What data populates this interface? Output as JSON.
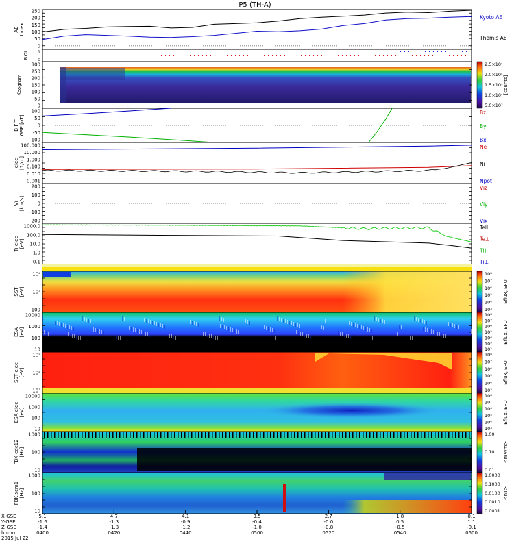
{
  "title": "P5 (TH-A)",
  "colors": {
    "kyoto": "#000000",
    "themis": "#1010c8",
    "bz": "#c00000",
    "by": "#00b000",
    "bx": "#0000c0",
    "ne": "#d00000",
    "ni": "#000000",
    "npot": "#0000c0",
    "green": "#22cc22"
  },
  "chart_data": [
    {
      "type": "line",
      "name": "ae",
      "ylabel": "AE Index",
      "ylim": [
        -25,
        260
      ],
      "yticks": [
        -25,
        0,
        25,
        50,
        75,
        100,
        125,
        150,
        175,
        200,
        225,
        250
      ],
      "ytick_labels": [
        "",
        "0",
        "",
        "50",
        "",
        "100",
        "",
        "150",
        "",
        "200",
        "",
        "250"
      ],
      "legend": [
        "Kyoto AE",
        "Themis AE"
      ],
      "series": [
        {
          "name": "Kyoto AE",
          "x": [
            0,
            0.05,
            0.1,
            0.15,
            0.2,
            0.25,
            0.3,
            0.35,
            0.4,
            0.45,
            0.5,
            0.55,
            0.6,
            0.65,
            0.7,
            0.75,
            0.8,
            0.85,
            0.9,
            0.95,
            1
          ],
          "values": [
            100,
            118,
            125,
            135,
            138,
            140,
            128,
            132,
            155,
            160,
            165,
            178,
            195,
            205,
            212,
            220,
            235,
            242,
            238,
            248,
            255
          ]
        },
        {
          "name": "Themis AE",
          "x": [
            0,
            0.05,
            0.1,
            0.15,
            0.2,
            0.25,
            0.3,
            0.35,
            0.4,
            0.45,
            0.5,
            0.55,
            0.6,
            0.65,
            0.7,
            0.75,
            0.8,
            0.85,
            0.9,
            0.95,
            1
          ],
          "values": [
            45,
            70,
            80,
            75,
            70,
            62,
            60,
            66,
            75,
            90,
            105,
            102,
            108,
            120,
            145,
            160,
            185,
            195,
            198,
            205,
            210
          ]
        }
      ]
    },
    {
      "type": "scatter",
      "name": "roi",
      "ylabel": "ROI",
      "yticks": [
        0,
        1
      ],
      "ytick_labels": [
        "0",
        "1"
      ]
    },
    {
      "type": "heatmap",
      "name": "keogram",
      "ylabel": "Keogram",
      "ylim": [
        0,
        300
      ],
      "yticks": [
        0,
        50,
        100,
        150,
        200,
        250,
        300
      ],
      "ytick_labels": [
        "0",
        "50",
        "100",
        "150",
        "200",
        "250",
        "300"
      ],
      "colorbar_label": "[counts]",
      "colorbar_ticks": [
        "2.5×10⁴",
        "2.0×10⁴",
        "1.5×10⁴",
        "1.0×10⁴",
        "5.0×10³"
      ]
    },
    {
      "type": "line",
      "name": "bfield",
      "ylabel": "B FIT GSE [nT]",
      "ylim": [
        -110,
        110
      ],
      "yticks": [
        -100,
        -50,
        0,
        50,
        100
      ],
      "ytick_labels": [
        "-100",
        "-50",
        "0",
        "50",
        "100"
      ],
      "legend": [
        "Bz",
        "By",
        "Bx"
      ],
      "series": [
        {
          "name": "Bx",
          "x": [
            0,
            0.1,
            0.2,
            0.3
          ],
          "values": [
            60,
            75,
            92,
            110
          ]
        },
        {
          "name": "By",
          "x": [
            0,
            0.1,
            0.2,
            0.3,
            0.4
          ],
          "values": [
            -45,
            -60,
            -75,
            -92,
            -110
          ]
        },
        {
          "name": "By2",
          "x": [
            0.76,
            0.78,
            0.8,
            0.815
          ],
          "values": [
            -110,
            -40,
            40,
            110
          ]
        }
      ]
    },
    {
      "type": "line",
      "name": "density",
      "ylabel": "elec [1/cc]",
      "ylog": true,
      "ylim": [
        0.001,
        100000
      ],
      "ytick_labels": [
        "100.000",
        "10.000",
        "1.000",
        "0.100",
        "0.010",
        "0.001"
      ],
      "legend": [
        "Ne",
        "Ni",
        "Npot"
      ],
      "series": [
        {
          "name": "Npot",
          "x": [
            0,
            0.5,
            0.9,
            1
          ],
          "values": [
            4000,
            8000,
            20000,
            30000
          ]
        },
        {
          "name": "Ne",
          "x": [
            0,
            0.5,
            0.9,
            1
          ],
          "values": [
            0.6,
            0.7,
            1.5,
            3
          ]
        },
        {
          "name": "Ni",
          "x": [
            0,
            0.2,
            0.4,
            0.6,
            0.8,
            0.9,
            0.94,
            1
          ],
          "values": [
            0.35,
            0.3,
            0.22,
            0.12,
            0.25,
            0.35,
            0.9,
            12
          ]
        }
      ]
    },
    {
      "type": "line",
      "name": "velocity",
      "ylabel": "Vi [km/s]",
      "ylim": [
        -250,
        250
      ],
      "yticks": [
        -200,
        -100,
        0,
        100,
        200
      ],
      "ytick_labels": [
        "-200",
        "-100",
        "0",
        "100",
        "200"
      ],
      "legend": [
        "Viz",
        "Viy",
        "Vix"
      ]
    },
    {
      "type": "line",
      "name": "temperature",
      "ylabel": "Ti elec [eV]",
      "ylog": true,
      "ylim": [
        0.05,
        3000
      ],
      "ytick_labels": [
        "1000.0",
        "100.0",
        "10.0",
        "1.0",
        "0.1"
      ],
      "legend": [
        "Tell",
        "Te⊥",
        "Ti∥",
        "Ti⊥"
      ],
      "series": [
        {
          "name": "Ti",
          "x": [
            0,
            0.3,
            0.6,
            0.75,
            0.8,
            0.9,
            0.94,
            1
          ],
          "values": [
            2000,
            1800,
            1500,
            700,
            800,
            900,
            100,
            20
          ]
        },
        {
          "name": "Te",
          "x": [
            0,
            0.3,
            0.55,
            0.7,
            0.9,
            0.95,
            1
          ],
          "values": [
            150,
            120,
            100,
            30,
            15,
            8,
            4
          ]
        }
      ]
    },
    {
      "type": "heatmap",
      "name": "sst-ion",
      "ylabel": "SST [eV]",
      "ytick_labels": [
        "10⁴",
        "10³",
        "100"
      ],
      "colorbar_label": "Eflux, EFU",
      "colorbar_ticks": [
        "10⁸",
        "10⁷",
        "10⁶",
        "10⁵",
        "10⁴",
        "10³"
      ]
    },
    {
      "type": "heatmap",
      "name": "esa-ion",
      "ylabel": "ESA [eV]",
      "ytick_labels": [
        "10000",
        "1000",
        "100",
        "10"
      ],
      "colorbar_label": "Eflux, EFU",
      "colorbar_ticks": [
        "10⁸",
        "10⁷",
        "10⁶",
        "10⁵",
        "10⁴",
        "10³",
        "10²"
      ]
    },
    {
      "type": "heatmap",
      "name": "sst-elec",
      "ylabel": "SST elec [eV]",
      "ytick_labels": [
        "10⁵",
        "10⁴",
        "10³"
      ],
      "colorbar_label": "Eflux, EFU",
      "colorbar_ticks": [
        "10⁸",
        "10⁷",
        "10⁶",
        "10⁵",
        "10⁴",
        "10³"
      ]
    },
    {
      "type": "heatmap",
      "name": "esa-elec",
      "ylabel": "ESA elec [eV]",
      "ytick_labels": [
        "10000",
        "1000",
        "100",
        "10"
      ],
      "colorbar_label": "Eflux, EFU",
      "colorbar_ticks": [
        "10⁸",
        "10⁷",
        "10⁶",
        "10⁵",
        "10⁴",
        "10³"
      ]
    },
    {
      "type": "heatmap",
      "name": "fbk-edc",
      "ylabel": "FBK edc12 [Hz]",
      "ytick_labels": [
        "1000",
        "100",
        "10"
      ],
      "colorbar_label": "<mV/m>",
      "colorbar_ticks": [
        "1.00",
        "0.10",
        "0.01"
      ]
    },
    {
      "type": "heatmap",
      "name": "fbk-scm",
      "ylabel": "FBK scm1 [Hz]",
      "ytick_labels": [
        "1000",
        "100",
        "10"
      ],
      "colorbar_label": "<nT>",
      "colorbar_ticks": [
        "1.0000",
        "0.1000",
        "0.0100",
        "0.0010",
        "0.0001"
      ]
    }
  ],
  "xaxis": {
    "row_labels": [
      "X-GSE",
      "Y-GSE",
      "Z-GSE",
      "hhmm",
      "2015 Jul 22"
    ],
    "ticks": [
      {
        "x": "5.1",
        "y": "-1.6",
        "z": "-1.4",
        "t": "0400"
      },
      {
        "x": "4.7",
        "y": "-1.3",
        "z": "-1.3",
        "t": "0420"
      },
      {
        "x": "4.1",
        "y": "-0.9",
        "z": "-1.2",
        "t": "0440"
      },
      {
        "x": "3.5",
        "y": "-0.4",
        "z": "-1.0",
        "t": "0500"
      },
      {
        "x": "2.7",
        "y": "-0.0",
        "z": "-0.8",
        "t": "0520"
      },
      {
        "x": "1.8",
        "y": "0.5",
        "z": "-0.5",
        "t": "0540"
      },
      {
        "x": "0.1",
        "y": "1.1",
        "z": "-0.1",
        "t": "0600"
      }
    ]
  }
}
